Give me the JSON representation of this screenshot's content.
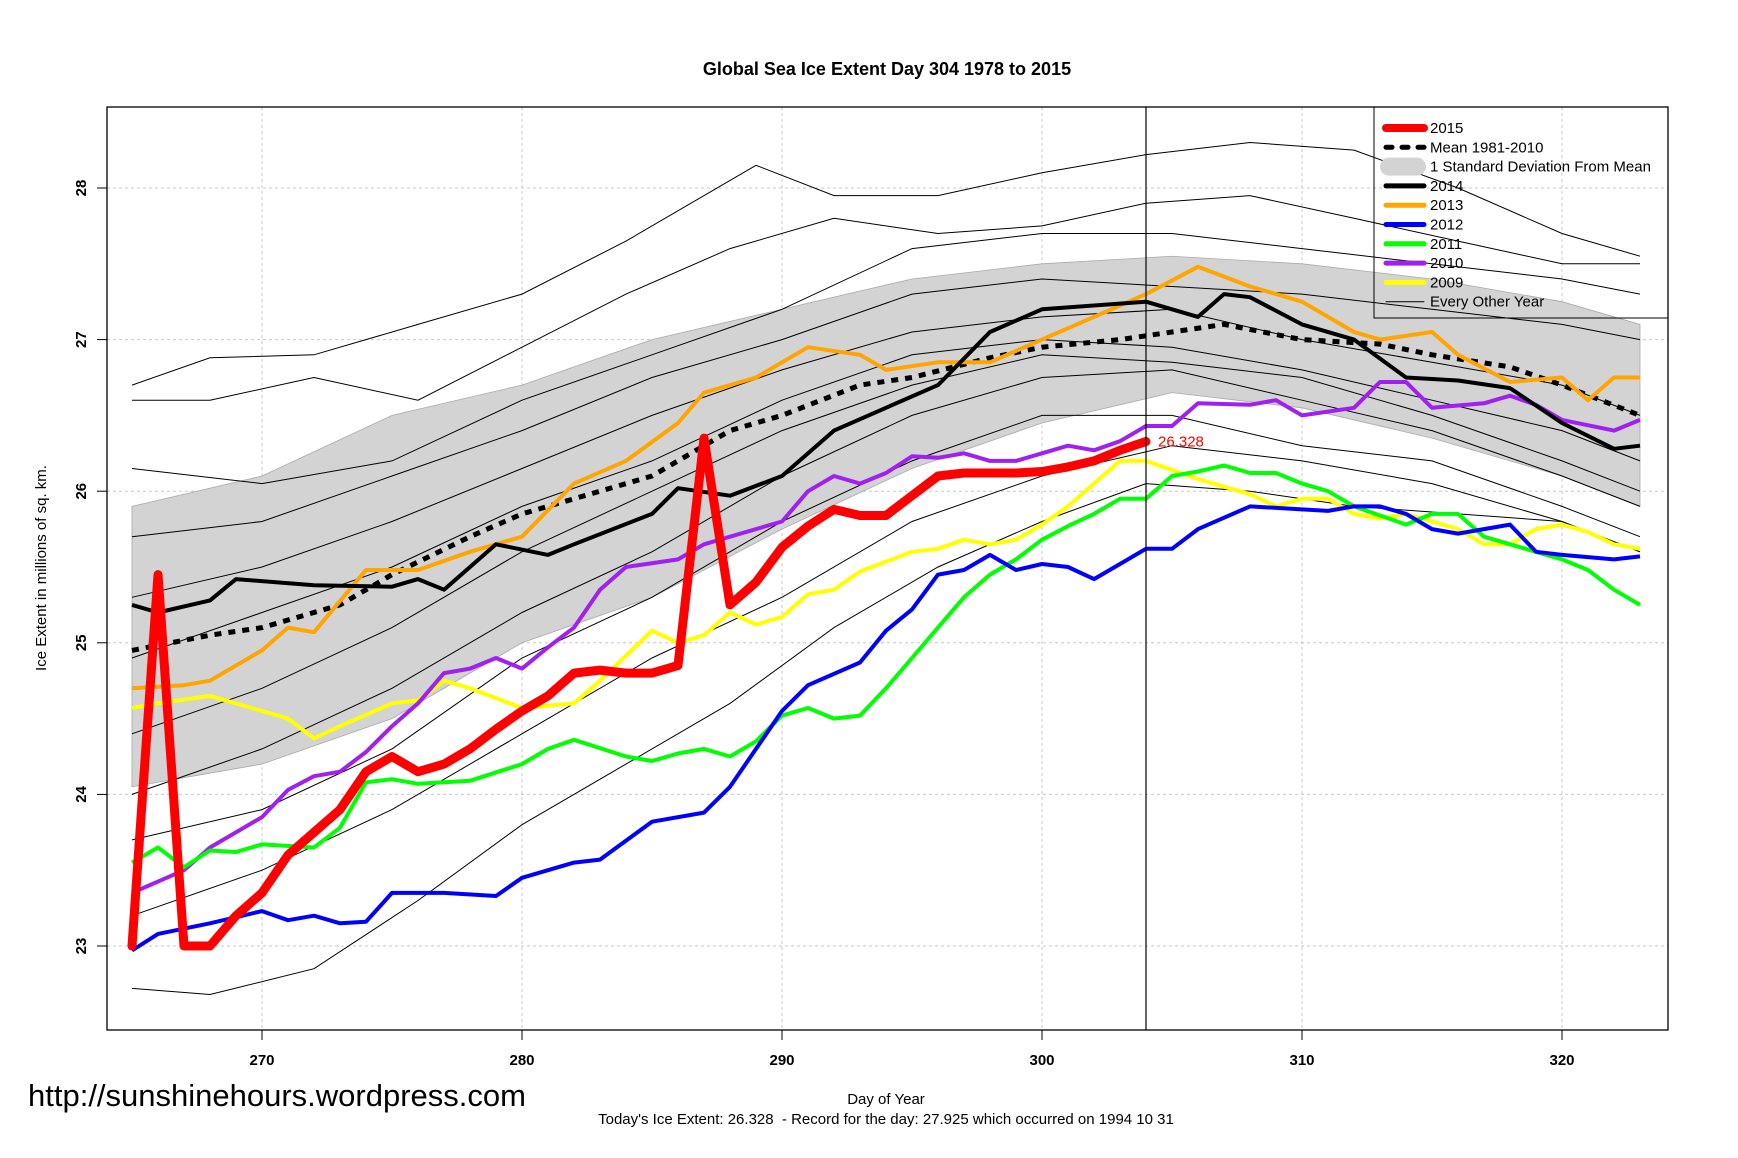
{
  "chart_data": {
    "type": "line",
    "title": "Global Sea Ice Extent Day 304 1978 to 2015",
    "xlabel": "Day of Year",
    "ylabel": "Ice Extent in millions of sq. km.",
    "subtitle": "Today's Ice Extent: 26.328  - Record for the day: 27.925 which occurred on 1994 10 31",
    "watermark": "http://sunshinehours.wordpress.com",
    "xlim": [
      265,
      323
    ],
    "ylim": [
      22.4,
      28.5
    ],
    "xticks": [
      270,
      280,
      290,
      300,
      310,
      320
    ],
    "yticks": [
      23,
      24,
      25,
      26,
      27,
      28
    ],
    "grid": true,
    "current_day": 304,
    "current_value_label": "26.328",
    "current_value": 26.328,
    "legend_position": "top-right",
    "legend": [
      {
        "label": "2015",
        "color": "#ff0000",
        "kind": "thick"
      },
      {
        "label": "Mean 1981-2010",
        "color": "#000000",
        "kind": "dashed"
      },
      {
        "label": "1 Standard Deviation From Mean",
        "color": "#d3d3d3",
        "kind": "band"
      },
      {
        "label": "2014",
        "color": "#000000",
        "kind": "line"
      },
      {
        "label": "2013",
        "color": "#ffa500",
        "kind": "line"
      },
      {
        "label": "2012",
        "color": "#0000ff",
        "kind": "line"
      },
      {
        "label": "2011",
        "color": "#00ff00",
        "kind": "line"
      },
      {
        "label": "2010",
        "color": "#a020f0",
        "kind": "line"
      },
      {
        "label": "2009",
        "color": "#ffff00",
        "kind": "line"
      },
      {
        "label": "Every Other Year",
        "color": "#000000",
        "kind": "thin"
      }
    ],
    "sd_band": {
      "x": [
        265,
        270,
        275,
        280,
        285,
        290,
        295,
        300,
        305,
        310,
        315,
        320,
        323
      ],
      "upper": [
        25.9,
        26.1,
        26.5,
        26.7,
        27.0,
        27.2,
        27.4,
        27.5,
        27.55,
        27.5,
        27.4,
        27.25,
        27.1
      ],
      "lower": [
        24.05,
        24.2,
        24.5,
        25.0,
        25.3,
        25.75,
        26.15,
        26.45,
        26.65,
        26.55,
        26.35,
        26.1,
        25.9
      ]
    },
    "other_years": [
      {
        "x": [
          265,
          268,
          272,
          276,
          280,
          284,
          289,
          292,
          296,
          300,
          304,
          308,
          312,
          316,
          320,
          323
        ],
        "y": [
          26.7,
          26.88,
          26.9,
          27.1,
          27.3,
          27.65,
          28.15,
          27.95,
          27.95,
          28.1,
          28.22,
          28.3,
          28.25,
          28.0,
          27.7,
          27.55
        ]
      },
      {
        "x": [
          265,
          268,
          272,
          276,
          280,
          284,
          288,
          292,
          296,
          300,
          304,
          308,
          312,
          316,
          320,
          323
        ],
        "y": [
          26.6,
          26.6,
          26.75,
          26.6,
          26.95,
          27.3,
          27.6,
          27.8,
          27.7,
          27.75,
          27.9,
          27.95,
          27.8,
          27.65,
          27.5,
          27.5
        ]
      },
      {
        "x": [
          265,
          270,
          275,
          280,
          285,
          290,
          295,
          300,
          305,
          310,
          315,
          320,
          323
        ],
        "y": [
          26.15,
          26.05,
          26.2,
          26.6,
          26.9,
          27.2,
          27.6,
          27.7,
          27.7,
          27.6,
          27.5,
          27.4,
          27.3
        ]
      },
      {
        "x": [
          265,
          270,
          275,
          280,
          285,
          290,
          295,
          300,
          305,
          310,
          315,
          320,
          323
        ],
        "y": [
          25.7,
          25.8,
          26.1,
          26.4,
          26.75,
          27.0,
          27.3,
          27.4,
          27.35,
          27.3,
          27.2,
          27.1,
          27.0
        ]
      },
      {
        "x": [
          265,
          270,
          275,
          280,
          285,
          290,
          295,
          300,
          305,
          310,
          315,
          320,
          323
        ],
        "y": [
          25.3,
          25.5,
          25.8,
          26.15,
          26.5,
          26.8,
          27.05,
          27.15,
          27.2,
          27.0,
          26.85,
          26.7,
          26.5
        ]
      },
      {
        "x": [
          265,
          270,
          275,
          280,
          285,
          290,
          295,
          300,
          305,
          310,
          315,
          320,
          323
        ],
        "y": [
          24.9,
          25.2,
          25.5,
          25.9,
          26.2,
          26.6,
          26.9,
          27.0,
          26.95,
          26.8,
          26.6,
          26.4,
          26.2
        ]
      },
      {
        "x": [
          265,
          270,
          275,
          280,
          285,
          290,
          295,
          300,
          305,
          310,
          315,
          320,
          323
        ],
        "y": [
          24.4,
          24.7,
          25.1,
          25.6,
          26.0,
          26.4,
          26.7,
          26.9,
          26.85,
          26.75,
          26.5,
          26.2,
          26.0
        ]
      },
      {
        "x": [
          265,
          270,
          275,
          280,
          285,
          290,
          295,
          300,
          305,
          310,
          315,
          320,
          323
        ],
        "y": [
          24.0,
          24.3,
          24.7,
          25.2,
          25.6,
          26.1,
          26.5,
          26.75,
          26.8,
          26.6,
          26.4,
          26.1,
          25.9
        ]
      },
      {
        "x": [
          265,
          270,
          275,
          280,
          285,
          290,
          295,
          300,
          305,
          310,
          315,
          320,
          323
        ],
        "y": [
          23.7,
          23.9,
          24.3,
          24.9,
          25.3,
          25.8,
          26.2,
          26.5,
          26.5,
          26.3,
          26.2,
          25.9,
          25.7
        ]
      },
      {
        "x": [
          265,
          270,
          275,
          280,
          285,
          290,
          295,
          300,
          305,
          310,
          315,
          320,
          323
        ],
        "y": [
          23.2,
          23.5,
          23.9,
          24.4,
          24.9,
          25.3,
          25.8,
          26.1,
          26.3,
          26.2,
          26.05,
          25.8,
          25.6
        ]
      },
      {
        "x": [
          265,
          268,
          272,
          276,
          280,
          284,
          288,
          292,
          296,
          300,
          304,
          308,
          312,
          316,
          320,
          323
        ],
        "y": [
          22.72,
          22.68,
          22.85,
          23.3,
          23.8,
          24.2,
          24.6,
          25.1,
          25.5,
          25.8,
          26.05,
          26.0,
          25.9,
          25.85,
          25.8,
          25.6
        ]
      }
    ],
    "series": [
      {
        "name": "Mean 1981-2010",
        "color": "#000000",
        "style": "dashed",
        "x": [
          265,
          268,
          270,
          273,
          275,
          278,
          280,
          283,
          285,
          288,
          290,
          293,
          295,
          298,
          300,
          303,
          305,
          307,
          310,
          313,
          315,
          318,
          320,
          323
        ],
        "y": [
          24.95,
          25.05,
          25.1,
          25.25,
          25.45,
          25.7,
          25.85,
          26.0,
          26.1,
          26.4,
          26.5,
          26.7,
          26.75,
          26.88,
          26.95,
          27.0,
          27.05,
          27.1,
          27.0,
          26.97,
          26.9,
          26.82,
          26.7,
          26.5
        ]
      },
      {
        "name": "2009",
        "color": "#ffff00",
        "style": "line",
        "x": [
          265,
          266,
          268,
          270,
          271,
          272,
          273,
          275,
          276,
          277,
          278,
          280,
          282,
          283,
          285,
          286,
          287,
          288,
          289,
          290,
          291,
          292,
          293,
          295,
          296,
          297,
          298,
          299,
          300,
          301,
          302,
          303,
          304,
          306,
          308,
          309,
          310,
          311,
          312,
          313,
          314,
          316,
          317,
          318,
          319,
          320,
          321,
          322,
          323
        ],
        "y": [
          24.57,
          24.6,
          24.65,
          24.55,
          24.5,
          24.37,
          24.45,
          24.6,
          24.62,
          24.75,
          24.7,
          24.57,
          24.6,
          24.75,
          25.08,
          25.0,
          25.05,
          25.2,
          25.12,
          25.17,
          25.32,
          25.35,
          25.47,
          25.6,
          25.62,
          25.68,
          25.65,
          25.68,
          25.78,
          25.9,
          26.05,
          26.2,
          26.2,
          26.08,
          25.98,
          25.9,
          25.95,
          25.95,
          25.85,
          25.82,
          25.85,
          25.75,
          25.65,
          25.65,
          25.75,
          25.78,
          25.73,
          25.65,
          25.62
        ]
      },
      {
        "name": "2010",
        "color": "#a020f0",
        "style": "line",
        "x": [
          265,
          267,
          268,
          270,
          271,
          272,
          273,
          274,
          275,
          276,
          277,
          278,
          279,
          280,
          281,
          282,
          283,
          284,
          286,
          287,
          288,
          290,
          291,
          292,
          293,
          294,
          295,
          296,
          297,
          298,
          299,
          300,
          301,
          302,
          303,
          304,
          305,
          306,
          308,
          309,
          310,
          312,
          313,
          314,
          315,
          317,
          318,
          319,
          320,
          322,
          323
        ],
        "y": [
          23.35,
          23.5,
          23.65,
          23.85,
          24.03,
          24.12,
          24.15,
          24.28,
          24.45,
          24.6,
          24.8,
          24.83,
          24.9,
          24.83,
          24.97,
          25.1,
          25.35,
          25.5,
          25.55,
          25.65,
          25.7,
          25.8,
          26.0,
          26.1,
          26.05,
          26.12,
          26.23,
          26.22,
          26.25,
          26.2,
          26.2,
          26.25,
          26.3,
          26.27,
          26.33,
          26.43,
          26.43,
          26.58,
          26.57,
          26.6,
          26.5,
          26.55,
          26.72,
          26.72,
          26.55,
          26.58,
          26.63,
          26.57,
          26.47,
          26.4,
          26.47
        ]
      },
      {
        "name": "2011",
        "color": "#00ff00",
        "style": "line",
        "x": [
          265,
          266,
          267,
          268,
          269,
          270,
          272,
          273,
          274,
          275,
          276,
          278,
          280,
          281,
          282,
          284,
          285,
          286,
          287,
          288,
          289,
          290,
          291,
          292,
          293,
          294,
          295,
          296,
          297,
          298,
          299,
          300,
          301,
          302,
          303,
          304,
          305,
          306,
          307,
          308,
          309,
          310,
          311,
          312,
          314,
          315,
          316,
          317,
          318,
          320,
          321,
          322,
          323
        ],
        "y": [
          23.55,
          23.65,
          23.52,
          23.63,
          23.62,
          23.67,
          23.65,
          23.78,
          24.08,
          24.1,
          24.07,
          24.09,
          24.2,
          24.3,
          24.36,
          24.25,
          24.22,
          24.27,
          24.3,
          24.25,
          24.35,
          24.52,
          24.57,
          24.5,
          24.52,
          24.7,
          24.9,
          25.1,
          25.3,
          25.45,
          25.55,
          25.68,
          25.77,
          25.85,
          25.95,
          25.95,
          26.1,
          26.13,
          26.17,
          26.12,
          26.12,
          26.05,
          26.0,
          25.9,
          25.78,
          25.85,
          25.85,
          25.7,
          25.65,
          25.55,
          25.48,
          25.35,
          25.25
        ]
      },
      {
        "name": "2012",
        "color": "#0000ff",
        "style": "line",
        "x": [
          265,
          266,
          268,
          270,
          271,
          272,
          273,
          274,
          275,
          277,
          279,
          280,
          282,
          283,
          285,
          287,
          288,
          289,
          290,
          291,
          293,
          294,
          295,
          296,
          297,
          298,
          299,
          300,
          301,
          302,
          303,
          304,
          305,
          306,
          308,
          310,
          311,
          312,
          313,
          314,
          315,
          316,
          318,
          319,
          320,
          322,
          323
        ],
        "y": [
          22.97,
          23.08,
          23.15,
          23.23,
          23.17,
          23.2,
          23.15,
          23.16,
          23.35,
          23.35,
          23.33,
          23.45,
          23.55,
          23.57,
          23.82,
          23.88,
          24.05,
          24.3,
          24.55,
          24.72,
          24.87,
          25.08,
          25.22,
          25.45,
          25.48,
          25.58,
          25.48,
          25.52,
          25.5,
          25.42,
          25.52,
          25.62,
          25.62,
          25.75,
          25.9,
          25.88,
          25.87,
          25.9,
          25.9,
          25.85,
          25.75,
          25.72,
          25.78,
          25.6,
          25.58,
          25.55,
          25.57
        ]
      },
      {
        "name": "2013",
        "color": "#ffa500",
        "style": "line",
        "x": [
          265,
          267,
          268,
          270,
          271,
          272,
          274,
          276,
          278,
          280,
          282,
          284,
          286,
          287,
          289,
          291,
          293,
          294,
          296,
          298,
          300,
          302,
          304,
          306,
          308,
          310,
          312,
          313,
          315,
          316,
          318,
          320,
          321,
          322,
          323
        ],
        "y": [
          24.7,
          24.72,
          24.75,
          24.95,
          25.1,
          25.07,
          25.48,
          25.48,
          25.6,
          25.7,
          26.05,
          26.2,
          26.45,
          26.65,
          26.75,
          26.95,
          26.9,
          26.8,
          26.85,
          26.85,
          27.0,
          27.15,
          27.3,
          27.48,
          27.35,
          27.25,
          27.05,
          27.0,
          27.05,
          26.9,
          26.72,
          26.75,
          26.6,
          26.75,
          26.75
        ]
      },
      {
        "name": "2014",
        "color": "#000000",
        "style": "line",
        "x": [
          265,
          266,
          268,
          269,
          272,
          275,
          276,
          277,
          279,
          281,
          282,
          285,
          286,
          288,
          290,
          292,
          294,
          296,
          298,
          300,
          304,
          306,
          307,
          308,
          310,
          312,
          314,
          316,
          318,
          320,
          322,
          323
        ],
        "y": [
          25.25,
          25.2,
          25.28,
          25.42,
          25.38,
          25.37,
          25.42,
          25.35,
          25.65,
          25.58,
          25.65,
          25.85,
          26.02,
          25.97,
          26.1,
          26.4,
          26.55,
          26.7,
          27.05,
          27.2,
          27.25,
          27.15,
          27.3,
          27.28,
          27.1,
          27.0,
          26.75,
          26.73,
          26.68,
          26.45,
          26.28,
          26.3
        ]
      },
      {
        "name": "2015",
        "color": "#ff0000",
        "style": "thick",
        "x": [
          265,
          266,
          267,
          268,
          269,
          270,
          271,
          272,
          273,
          274,
          275,
          276,
          277,
          278,
          279,
          280,
          281,
          282,
          283,
          284,
          285,
          286,
          287,
          288,
          289,
          290,
          291,
          292,
          293,
          294,
          295,
          296,
          297,
          298,
          299,
          300,
          301,
          302,
          303,
          304
        ],
        "y": [
          23.0,
          25.45,
          23.0,
          23.0,
          23.2,
          23.35,
          23.6,
          23.75,
          23.9,
          24.15,
          24.25,
          24.15,
          24.2,
          24.3,
          24.43,
          24.55,
          24.65,
          24.8,
          24.82,
          24.8,
          24.8,
          24.85,
          26.35,
          25.25,
          25.4,
          25.63,
          25.77,
          25.88,
          25.84,
          25.84,
          25.97,
          26.1,
          26.12,
          26.12,
          26.12,
          26.13,
          26.16,
          26.2,
          26.27,
          26.328
        ]
      }
    ]
  }
}
